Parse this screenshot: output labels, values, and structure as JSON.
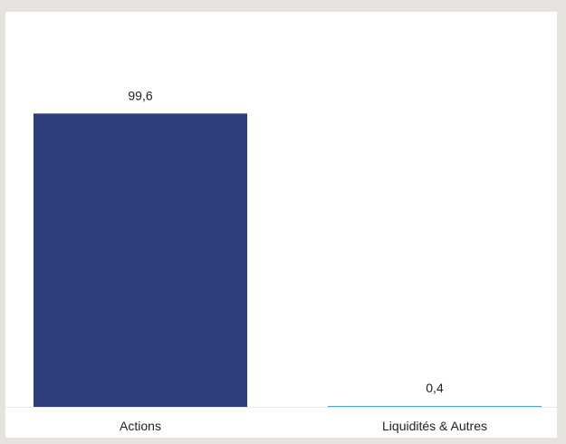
{
  "chart_data": {
    "type": "bar",
    "categories": [
      "Actions",
      "Liquidités & Autres"
    ],
    "values": [
      99.6,
      0.4
    ],
    "value_labels": [
      "99,6",
      "0,4"
    ],
    "colors": [
      "#2e3e7b",
      "#4aa8c9"
    ],
    "title": "",
    "xlabel": "",
    "ylabel": "",
    "ylim": [
      0,
      100
    ],
    "grid": false,
    "legend": "none"
  }
}
